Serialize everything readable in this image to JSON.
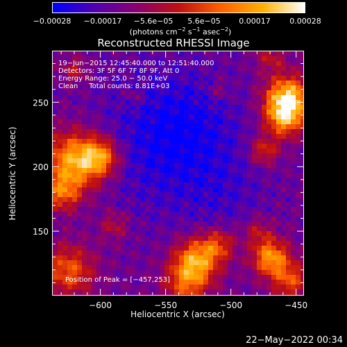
{
  "chart_data": {
    "type": "heatmap",
    "title": "Reconstructed RHESSI Image",
    "xlabel": "Heliocentric X (arcsec)",
    "ylabel": "Heliocentric Y (arcsec)",
    "xlim": [
      -637,
      -444
    ],
    "ylim": [
      100,
      290
    ],
    "x_ticks": [
      -600,
      -550,
      -500,
      -450
    ],
    "x_tick_labels": [
      "−600",
      "−550",
      "−500",
      "−450"
    ],
    "y_ticks": [
      150,
      200,
      250
    ],
    "y_tick_labels": [
      "150",
      "200",
      "250"
    ],
    "colorbar": {
      "min": -0.00028,
      "max": 0.00028,
      "tick_labels": [
        "−0.00028",
        "−0.00017",
        "−5.6e−05",
        "5.6e−05",
        "0.00017",
        "0.00028"
      ],
      "units_prefix": "(photons cm",
      "units_exp1": "−2",
      "units_mid1": " s",
      "units_exp2": "−1",
      "units_mid2": " asec",
      "units_exp3": "−2",
      "units_suffix": ")",
      "colors": [
        "#0000ff",
        "#5000b0",
        "#8a0070",
        "#c01010",
        "#ff6000",
        "#ffb000",
        "#ffffff"
      ]
    },
    "annotations": {
      "time_range": "19−Jun−2015 12:45:40.000 to 12:51:40.000",
      "detectors": "Detectors: 3F 5F 6F 7F 8F 9F, Att 0",
      "energy": "Energy Range: 25.0 − 50.0 keV",
      "clean": "Clean     Total counts: 8.81E+03",
      "peak": "Position of Peak = [−457,253]"
    },
    "peak_position": [
      -457,
      253
    ]
  },
  "footer": {
    "timestamp": "22−May−2022 00:34"
  }
}
